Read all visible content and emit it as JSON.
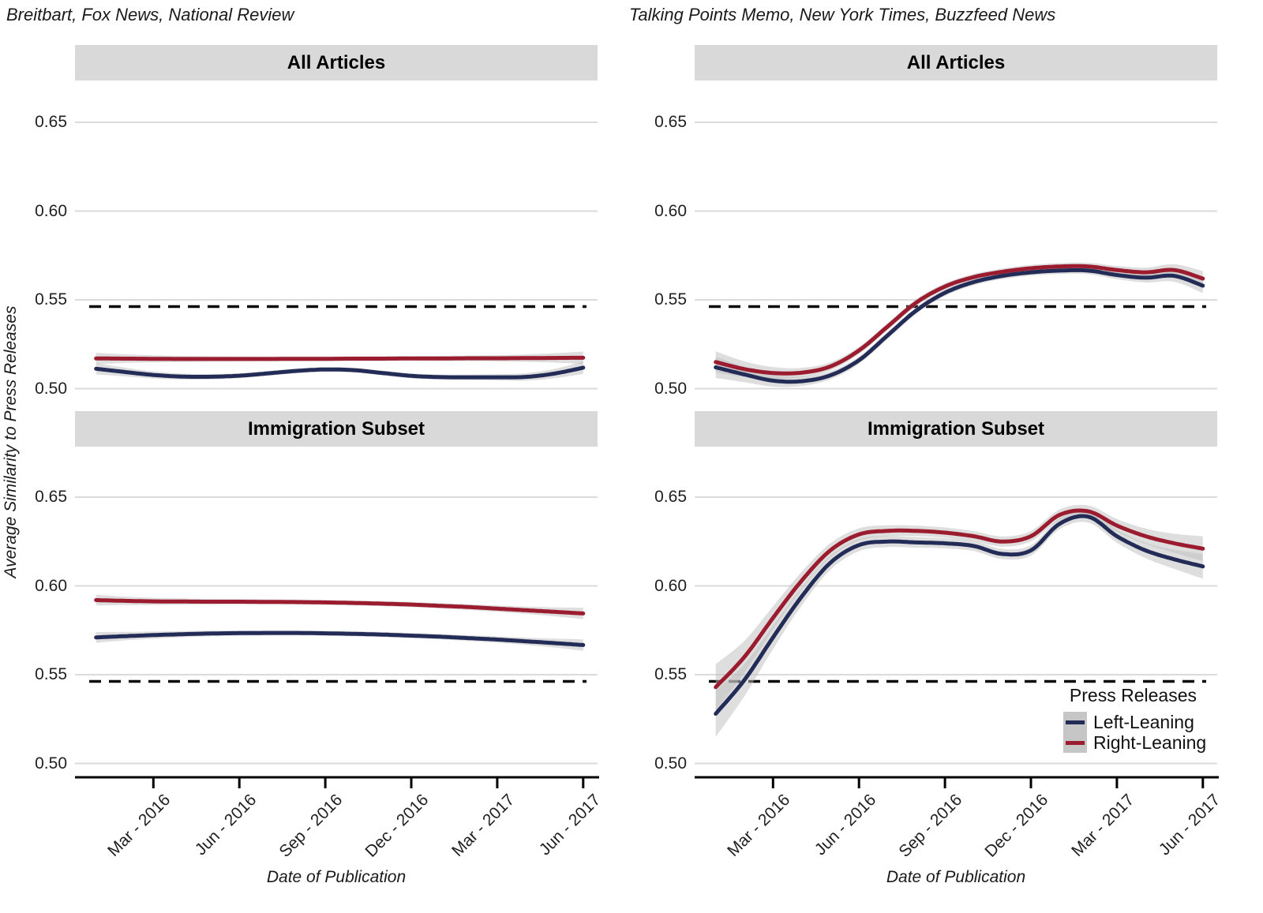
{
  "figure": {
    "columns": [
      {
        "title": "Breitbart, Fox News, National Review"
      },
      {
        "title": "Talking Points Memo, New York Times, Buzzfeed News"
      }
    ],
    "y_axis_label": "Average Similarity to Press Releases",
    "x_axis_label": "Date of Publication",
    "legend": {
      "title": "Press Releases",
      "items": [
        {
          "label": "Left-Leaning",
          "color": "#232C56"
        },
        {
          "label": "Right-Leaning",
          "color": "#9B1B2F"
        }
      ]
    },
    "colors": {
      "left_leaning": "#232C56",
      "right_leaning": "#9B1B2F",
      "strip_background": "#d9d9d9",
      "gridline": "#dbdbdb",
      "ci_band": "#bdbdbd",
      "baseline": "#0a0a0a",
      "axis_line": "#000000"
    }
  },
  "chart_data": [
    {
      "type": "line",
      "panel": "All Articles",
      "column_title": "Breitbart, Fox News, National Review",
      "x": [
        "Jan 2016",
        "Feb 2016",
        "Mar 2016",
        "Apr 2016",
        "May 2016",
        "Jun 2016",
        "Jul 2016",
        "Aug 2016",
        "Sep 2016",
        "Oct 2016",
        "Nov 2016",
        "Dec 2016",
        "Jan 2017",
        "Feb 2017",
        "Mar 2017",
        "Apr 2017",
        "May 2017",
        "Jun 2017"
      ],
      "x_tick_labels": [
        "Mar - 2016",
        "Jun - 2016",
        "Sep - 2016",
        "Dec - 2016",
        "Mar - 2017",
        "Jun - 2017"
      ],
      "x_tick_positions": [
        2,
        5,
        8,
        11,
        14,
        17
      ],
      "series": [
        {
          "name": "Left-Leaning",
          "color": "#232C56",
          "values": [
            0.5112,
            0.5094,
            0.5077,
            0.5068,
            0.5067,
            0.5073,
            0.5086,
            0.51,
            0.5108,
            0.5104,
            0.5088,
            0.5072,
            0.5065,
            0.5064,
            0.5064,
            0.5066,
            0.5085,
            0.5118
          ]
        },
        {
          "name": "Right-Leaning",
          "color": "#9B1B2F",
          "values": [
            0.517,
            0.5169,
            0.5168,
            0.5167,
            0.5167,
            0.5167,
            0.5167,
            0.5168,
            0.5168,
            0.5169,
            0.5169,
            0.517,
            0.517,
            0.5171,
            0.5171,
            0.5172,
            0.5173,
            0.5174
          ]
        }
      ],
      "baseline": {
        "value": 0.5462,
        "style": "dashed"
      },
      "ylim": [
        0.491,
        0.673
      ],
      "yticks": [
        0.5,
        0.55,
        0.6,
        0.65
      ],
      "ytick_labels": [
        "0.50",
        "0.55",
        "0.60",
        "0.65"
      ],
      "band": {
        "mid": 0.0013,
        "start": 0.0032,
        "end": 0.0035
      },
      "grid": "horizontal"
    },
    {
      "type": "line",
      "panel": "All Articles",
      "column_title": "Talking Points Memo, New York Times, Buzzfeed News",
      "x": [
        "Jan 2016",
        "Feb 2016",
        "Mar 2016",
        "Apr 2016",
        "May 2016",
        "Jun 2016",
        "Jul 2016",
        "Aug 2016",
        "Sep 2016",
        "Oct 2016",
        "Nov 2016",
        "Dec 2016",
        "Jan 2017",
        "Feb 2017",
        "Mar 2017",
        "Apr 2017",
        "May 2017",
        "Jun 2017"
      ],
      "x_tick_labels": [
        "Mar - 2016",
        "Jun - 2016",
        "Sep - 2016",
        "Dec - 2016",
        "Mar - 2017",
        "Jun - 2017"
      ],
      "x_tick_positions": [
        2,
        5,
        8,
        11,
        14,
        17
      ],
      "series": [
        {
          "name": "Left-Leaning",
          "color": "#232C56",
          "values": [
            0.512,
            0.508,
            0.5045,
            0.5042,
            0.5075,
            0.516,
            0.53,
            0.544,
            0.554,
            0.56,
            0.5635,
            0.5655,
            0.5665,
            0.5665,
            0.564,
            0.5625,
            0.5635,
            0.558
          ]
        },
        {
          "name": "Right-Leaning",
          "color": "#9B1B2F",
          "values": [
            0.515,
            0.511,
            0.5088,
            0.509,
            0.5125,
            0.5215,
            0.535,
            0.5485,
            0.5575,
            0.5628,
            0.5658,
            0.5678,
            0.5688,
            0.5688,
            0.5668,
            0.5655,
            0.5668,
            0.562
          ]
        }
      ],
      "baseline": {
        "value": 0.5462,
        "style": "dashed"
      },
      "ylim": [
        0.491,
        0.673
      ],
      "yticks": [
        0.5,
        0.55,
        0.6,
        0.65
      ],
      "ytick_labels": [
        "0.50",
        "0.55",
        "0.60",
        "0.65"
      ],
      "band": {
        "mid": 0.0018,
        "start": 0.006,
        "end": 0.0042
      },
      "grid": "horizontal"
    },
    {
      "type": "line",
      "panel": "Immigration Subset",
      "column_title": "Breitbart, Fox News, National Review",
      "x": [
        "Jan 2016",
        "Feb 2016",
        "Mar 2016",
        "Apr 2016",
        "May 2016",
        "Jun 2016",
        "Jul 2016",
        "Aug 2016",
        "Sep 2016",
        "Oct 2016",
        "Nov 2016",
        "Dec 2016",
        "Jan 2017",
        "Feb 2017",
        "Mar 2017",
        "Apr 2017",
        "May 2017",
        "Jun 2017"
      ],
      "x_tick_labels": [
        "Mar - 2016",
        "Jun - 2016",
        "Sep - 2016",
        "Dec - 2016",
        "Mar - 2017",
        "Jun - 2017"
      ],
      "x_tick_positions": [
        2,
        5,
        8,
        11,
        14,
        17
      ],
      "series": [
        {
          "name": "Left-Leaning",
          "color": "#232C56",
          "values": [
            0.571,
            0.5717,
            0.5723,
            0.5728,
            0.5732,
            0.5734,
            0.5735,
            0.5735,
            0.5733,
            0.573,
            0.5726,
            0.572,
            0.5714,
            0.5706,
            0.5698,
            0.5688,
            0.5678,
            0.5667
          ]
        },
        {
          "name": "Right-Leaning",
          "color": "#9B1B2F",
          "values": [
            0.592,
            0.5916,
            0.5913,
            0.5912,
            0.5911,
            0.5911,
            0.591,
            0.5909,
            0.5907,
            0.5904,
            0.59,
            0.5895,
            0.5888,
            0.5881,
            0.5872,
            0.5863,
            0.5854,
            0.5845
          ]
        }
      ],
      "baseline": {
        "value": 0.5462,
        "style": "dashed"
      },
      "ylim": [
        0.492,
        0.678
      ],
      "yticks": [
        0.5,
        0.55,
        0.6,
        0.65
      ],
      "ytick_labels": [
        "0.50",
        "0.55",
        "0.60",
        "0.65"
      ],
      "band": {
        "mid": 0.0014,
        "start": 0.003,
        "end": 0.0032
      },
      "grid": "horizontal"
    },
    {
      "type": "line",
      "panel": "Immigration Subset",
      "column_title": "Talking Points Memo, New York Times, Buzzfeed News",
      "x": [
        "Jan 2016",
        "Feb 2016",
        "Mar 2016",
        "Apr 2016",
        "May 2016",
        "Jun 2016",
        "Jul 2016",
        "Aug 2016",
        "Sep 2016",
        "Oct 2016",
        "Nov 2016",
        "Dec 2016",
        "Jan 2017",
        "Feb 2017",
        "Mar 2017",
        "Apr 2017",
        "May 2017",
        "Jun 2017"
      ],
      "x_tick_labels": [
        "Mar - 2016",
        "Jun - 2016",
        "Sep - 2016",
        "Dec - 2016",
        "Mar - 2017",
        "Jun - 2017"
      ],
      "x_tick_positions": [
        2,
        5,
        8,
        11,
        14,
        17
      ],
      "series": [
        {
          "name": "Left-Leaning",
          "color": "#232C56",
          "values": [
            0.528,
            0.547,
            0.571,
            0.594,
            0.613,
            0.623,
            0.625,
            0.6245,
            0.624,
            0.6225,
            0.618,
            0.62,
            0.635,
            0.639,
            0.628,
            0.62,
            0.615,
            0.611
          ]
        },
        {
          "name": "Right-Leaning",
          "color": "#9B1B2F",
          "values": [
            0.543,
            0.56,
            0.582,
            0.603,
            0.62,
            0.629,
            0.631,
            0.631,
            0.63,
            0.628,
            0.625,
            0.628,
            0.64,
            0.642,
            0.634,
            0.628,
            0.624,
            0.621
          ]
        }
      ],
      "baseline": {
        "value": 0.5462,
        "style": "dashed"
      },
      "ylim": [
        0.492,
        0.678
      ],
      "yticks": [
        0.5,
        0.55,
        0.6,
        0.65
      ],
      "ytick_labels": [
        "0.50",
        "0.55",
        "0.60",
        "0.65"
      ],
      "band": {
        "mid": 0.0028,
        "start": 0.013,
        "end": 0.007
      },
      "grid": "horizontal",
      "legend_position": "bottom-right-inside"
    }
  ]
}
